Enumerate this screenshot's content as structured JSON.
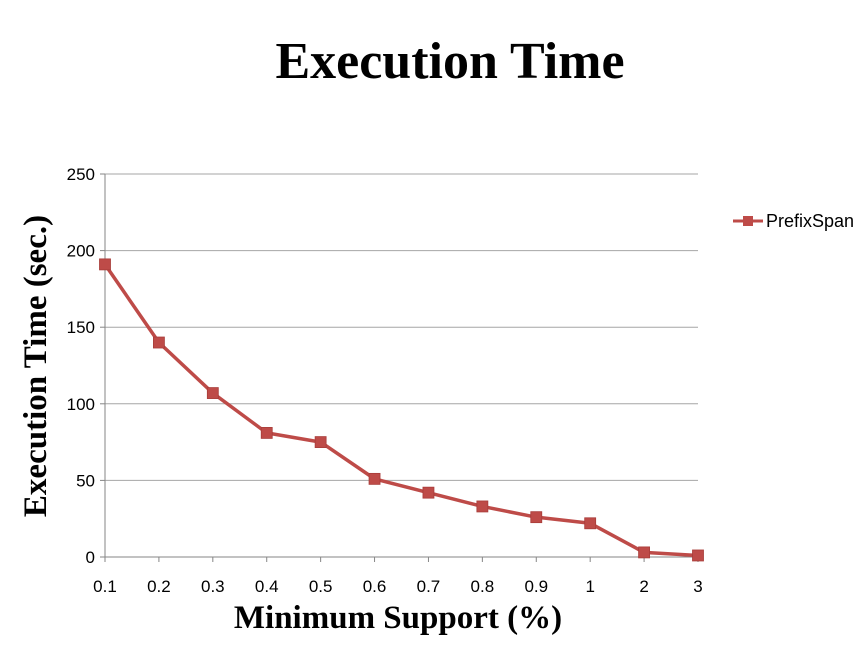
{
  "chart_data": {
    "type": "line",
    "title": "Execution Time",
    "xlabel": "Minimum Support (%)",
    "ylabel": "Execution Time (sec.)",
    "categories": [
      "0.1",
      "0.2",
      "0.3",
      "0.4",
      "0.5",
      "0.6",
      "0.7",
      "0.8",
      "0.9",
      "1",
      "2",
      "3"
    ],
    "series": [
      {
        "name": "PrefixSpan",
        "color": "#be4b48",
        "marker": "square",
        "values": [
          191,
          140,
          107,
          81,
          75,
          51,
          42,
          33,
          26,
          22,
          3,
          1
        ]
      }
    ],
    "ylim": [
      0,
      250
    ],
    "yticks": [
      0,
      50,
      100,
      150,
      200,
      250
    ],
    "grid": true,
    "legend_position": "right"
  }
}
